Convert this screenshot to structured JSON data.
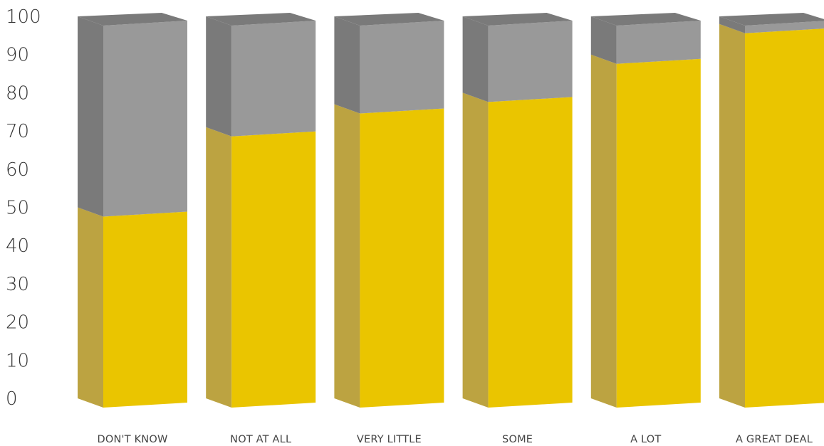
{
  "chart_data": {
    "type": "bar",
    "stacked": true,
    "style": "3d",
    "categories": [
      "DON'T KNOW",
      "NOT AT ALL",
      "VERY LITTLE",
      "SOME",
      "A LOT",
      "A GREAT DEAL"
    ],
    "series": [
      {
        "values": [
          50,
          71,
          77,
          80,
          90,
          98
        ]
      },
      {
        "values": [
          50,
          29,
          23,
          20,
          10,
          2
        ]
      }
    ],
    "yticks": [
      "0",
      "10",
      "20",
      "30",
      "40",
      "50",
      "60",
      "70",
      "80",
      "90",
      "100"
    ],
    "ylim": [
      0,
      100
    ],
    "grid": false,
    "legend": "none",
    "colors": {
      "yellow_front": "#EAC500",
      "yellow_side": "#BCA341",
      "gray_front": "#999999",
      "gray_side": "#7A7A7A",
      "gray_top": "#7A7A7A"
    }
  }
}
